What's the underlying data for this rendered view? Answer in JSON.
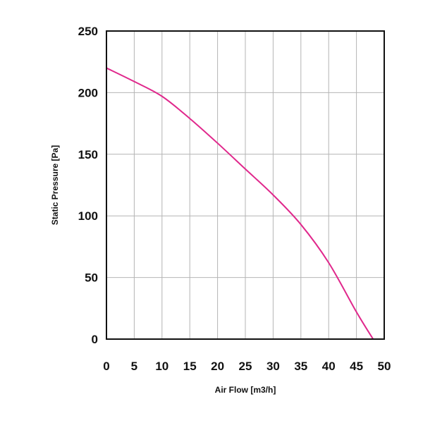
{
  "chart_data": {
    "type": "line",
    "title": "",
    "xlabel": "Air Flow [m3/h]",
    "ylabel": "Static Pressure [Pa]",
    "xlim": [
      0,
      50
    ],
    "ylim": [
      0,
      250
    ],
    "x_ticks": [
      0,
      5,
      10,
      15,
      20,
      25,
      30,
      35,
      40,
      45,
      50
    ],
    "y_ticks": [
      0,
      50,
      100,
      150,
      200,
      250
    ],
    "grid": true,
    "series": [
      {
        "color": "#e0288c",
        "x": [
          0,
          5,
          10,
          15,
          20,
          25,
          30,
          35,
          40,
          45,
          48
        ],
        "y": [
          220,
          209,
          197,
          179,
          159,
          138,
          117,
          93,
          62,
          22,
          0
        ]
      }
    ]
  }
}
